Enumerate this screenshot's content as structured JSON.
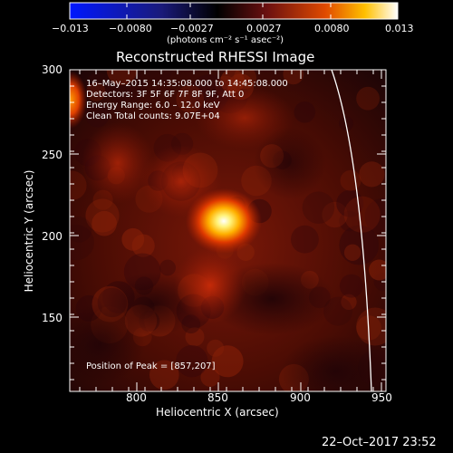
{
  "colorbar": {
    "ticks": [
      "−0.013",
      "−0.0080",
      "−0.0027",
      "0.0027",
      "0.0080",
      "0.013"
    ],
    "unit_label": "(photons cm⁻² s⁻¹ asec⁻²)",
    "colormap": "blue-black-red-yellow-white"
  },
  "title": "Reconstructed RHESSI Image",
  "info_lines": [
    "16–May–2015 14:35:08.000 to 14:45:08.000",
    "Detectors: 3F 5F 6F 7F 8F 9F, Att 0",
    "Energy Range: 6.0 – 12.0 keV",
    "Clean    Total counts: 9.07E+04"
  ],
  "peak_text": "Position of Peak = [857,207]",
  "axes": {
    "xlabel": "Heliocentric X (arcsec)",
    "ylabel": "Heliocentric Y (arcsec)",
    "x_ticks": [
      "800",
      "850",
      "900",
      "950"
    ],
    "y_ticks": [
      "150",
      "200",
      "250",
      "300"
    ]
  },
  "timestamp": "22–Oct–2017 23:52"
}
